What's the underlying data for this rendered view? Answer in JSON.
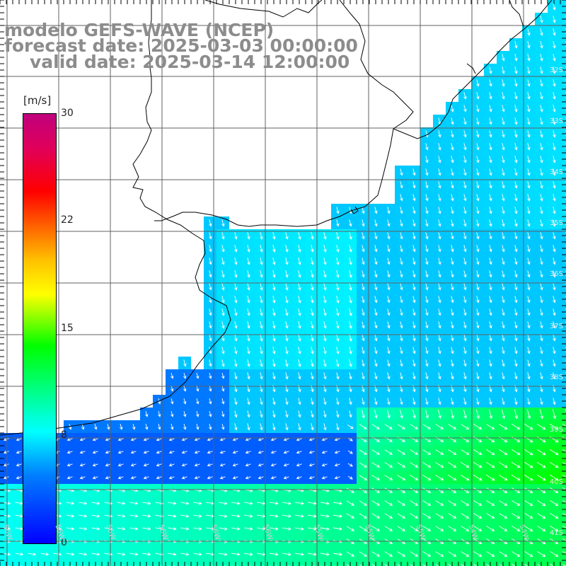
{
  "title": {
    "line1": "modelo GEFS-WAVE (NCEP)",
    "line2": "forecast date: 2025-03-03 00:00:00",
    "line3": "valid date: 2025-03-14 12:00:00"
  },
  "legend": {
    "unit": "[m/s]",
    "ticks": [
      "30",
      "22",
      "15",
      "8",
      "0"
    ],
    "tick_values": [
      30,
      22,
      15,
      8,
      0
    ],
    "min": 0,
    "max": 30,
    "colors": [
      "#0000ff",
      "#0080ff",
      "#00ffff",
      "#00ff80",
      "#00ff00",
      "#80ff00",
      "#ffff00",
      "#ffc000",
      "#ff6000",
      "#ff0000",
      "#e0005a",
      "#c0007c"
    ]
  },
  "lon_labels": [
    "56W",
    "56W",
    "56W",
    "56W",
    "56W",
    "56W",
    "55W",
    "55W",
    "55W",
    "54W",
    "54W"
  ],
  "lat_labels": [
    "32S",
    "33S",
    "34S",
    "35S",
    "36S",
    "37S",
    "38S",
    "39S",
    "40S",
    "41S"
  ],
  "colors": {
    "land": "#ffffff",
    "coast": "#000000",
    "grid": "#606060",
    "arrow": "#ffffff",
    "title_text": "#8c8c8c"
  }
}
